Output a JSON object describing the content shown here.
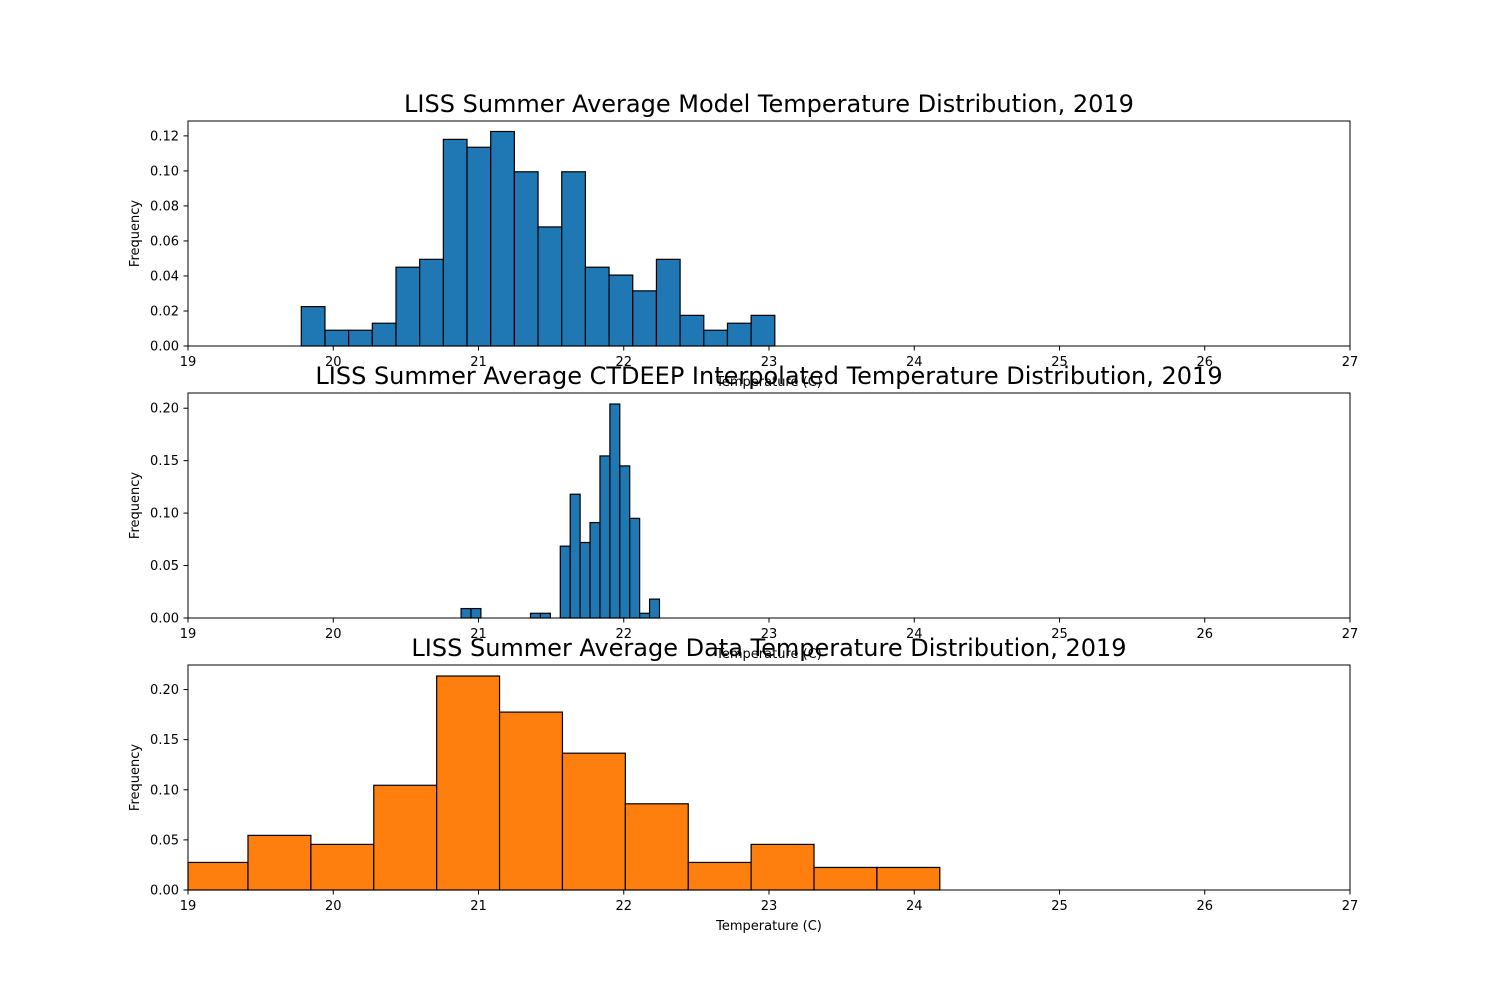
{
  "chart_data": [
    {
      "type": "bar",
      "subtype": "histogram",
      "title": "LISS Summer Average Model Temperature Distribution, 2019",
      "xlabel": "Temperature (C)",
      "ylabel": "Frequency",
      "xlim": [
        19,
        27
      ],
      "ylim": [
        0,
        0.1285
      ],
      "xticks": [
        "19",
        "20",
        "21",
        "22",
        "23",
        "24",
        "25",
        "26",
        "27"
      ],
      "yticks": [
        "0.00",
        "0.02",
        "0.04",
        "0.06",
        "0.08",
        "0.10",
        "0.12"
      ],
      "color": "#1f77b4",
      "edgecolor": "#000000",
      "grid": false,
      "bin_edges": [
        19.78,
        19.943,
        20.106,
        20.269,
        20.432,
        20.595,
        20.758,
        20.921,
        21.084,
        21.247,
        21.41,
        21.573,
        21.736,
        21.899,
        22.062,
        22.225,
        22.388,
        22.551,
        22.714,
        22.877,
        23.04
      ],
      "values": [
        0.0225,
        0.009,
        0.009,
        0.013,
        0.045,
        0.0495,
        0.118,
        0.1135,
        0.1225,
        0.0995,
        0.068,
        0.0995,
        0.045,
        0.0405,
        0.0315,
        0.0495,
        0.0175,
        0.009,
        0.013,
        0.0175
      ]
    },
    {
      "type": "bar",
      "subtype": "histogram",
      "title": "LISS Summer Average CTDEEP Interpolated Temperature Distribution, 2019",
      "xlabel": "Temperature (C)",
      "ylabel": "Frequency",
      "xlim": [
        19,
        27
      ],
      "ylim": [
        0,
        0.2145
      ],
      "xticks": [
        "19",
        "20",
        "21",
        "22",
        "23",
        "24",
        "25",
        "26",
        "27"
      ],
      "yticks": [
        "0.00",
        "0.05",
        "0.10",
        "0.15",
        "0.20"
      ],
      "color": "#1f77b4",
      "edgecolor": "#000000",
      "grid": false,
      "bin_edges": [
        20.88,
        20.9483,
        21.0166,
        21.0849,
        21.1532,
        21.2215,
        21.2898,
        21.3581,
        21.4264,
        21.4947,
        21.563,
        21.6313,
        21.6996,
        21.7679,
        21.8362,
        21.9045,
        21.9728,
        22.0411,
        22.1094,
        22.1777,
        22.246
      ],
      "values": [
        0.009,
        0.009,
        0,
        0,
        0,
        0,
        0,
        0.0045,
        0.0045,
        0,
        0.0685,
        0.118,
        0.072,
        0.091,
        0.1545,
        0.204,
        0.145,
        0.095,
        0.0045,
        0.018
      ]
    },
    {
      "type": "bar",
      "subtype": "histogram",
      "title": "LISS Summer Average Data Temperature Distribution, 2019",
      "xlabel": "Temperature (C)",
      "ylabel": "Frequency",
      "xlim": [
        19,
        27
      ],
      "ylim": [
        0,
        0.2245
      ],
      "xticks": [
        "19",
        "20",
        "21",
        "22",
        "23",
        "24",
        "25",
        "26",
        "27"
      ],
      "yticks": [
        "0.00",
        "0.05",
        "0.10",
        "0.15",
        "0.20"
      ],
      "color": "#ff7f0e",
      "edgecolor": "#000000",
      "grid": false,
      "bin_edges": [
        18.98,
        19.413,
        19.846,
        20.279,
        20.712,
        21.145,
        21.578,
        22.011,
        22.444,
        22.877,
        23.31,
        23.743,
        24.176
      ],
      "values": [
        0.0275,
        0.0545,
        0.0455,
        0.1045,
        0.2135,
        0.1775,
        0.1365,
        0.086,
        0.0275,
        0.0455,
        0.0225,
        0.0225
      ]
    }
  ]
}
